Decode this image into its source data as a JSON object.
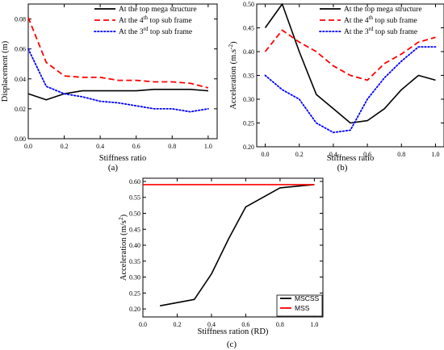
{
  "chart_data": [
    {
      "type": "line",
      "panel_label": "(a)",
      "xlabel": "Stiffness ratio",
      "ylabel": "Displacement (m)",
      "xlim": [
        0.0,
        1.05
      ],
      "ylim": [
        0.0,
        0.09
      ],
      "xticks": [
        "0.0",
        "0.2",
        "0.4",
        "0.6",
        "0.8",
        "1.0"
      ],
      "xtick_values": [
        0.0,
        0.2,
        0.4,
        0.6,
        0.8,
        1.0
      ],
      "yticks": [
        "0.00",
        "0.02",
        "0.04",
        "0.06",
        "0.08"
      ],
      "ytick_values": [
        0.0,
        0.02,
        0.04,
        0.06,
        0.08
      ],
      "grid": false,
      "legend_position": "top-right",
      "x": [
        0.0,
        0.1,
        0.2,
        0.3,
        0.4,
        0.5,
        0.6,
        0.7,
        0.8,
        0.9,
        1.0
      ],
      "series": [
        {
          "name": "At the top mega structure",
          "legend_main": "At the top mega structure",
          "legend_sup": "",
          "legend_post": "",
          "color": "#000000",
          "style": "solid",
          "values": [
            0.03,
            0.026,
            0.03,
            0.032,
            0.032,
            0.032,
            0.032,
            0.033,
            0.033,
            0.033,
            0.032
          ]
        },
        {
          "name": "At the 4th top sub frame",
          "legend_main": "At the 4",
          "legend_sup": "th",
          "legend_post": " top sub frame",
          "color": "#ff0000",
          "style": "dashed",
          "values": [
            0.081,
            0.051,
            0.042,
            0.041,
            0.041,
            0.039,
            0.039,
            0.038,
            0.038,
            0.037,
            0.034
          ]
        },
        {
          "name": "At the 3rd top sub frame",
          "legend_main": "At the 3",
          "legend_sup": "rd",
          "legend_post": " top sub frame",
          "color": "#0000ff",
          "style": "dotted",
          "values": [
            0.06,
            0.035,
            0.03,
            0.028,
            0.025,
            0.024,
            0.022,
            0.02,
            0.02,
            0.018,
            0.02
          ]
        }
      ]
    },
    {
      "type": "line",
      "panel_label": "(b)",
      "xlabel": "Stiffness ratio",
      "ylabel": "Acceleration (m.s",
      "ylabel_sup": "-2",
      "ylabel_post": ")",
      "xlim": [
        -0.05,
        1.05
      ],
      "ylim": [
        0.2,
        0.5
      ],
      "xticks": [
        "0.0",
        "0.2",
        "0.4",
        "0.6",
        "0.8",
        "1.0"
      ],
      "xtick_values": [
        0.0,
        0.2,
        0.4,
        0.6,
        0.8,
        1.0
      ],
      "yticks": [
        "0.20",
        "0.25",
        "0.30",
        "0.35",
        "0.40",
        "0.45",
        "0.50"
      ],
      "ytick_values": [
        0.2,
        0.25,
        0.3,
        0.35,
        0.4,
        0.45,
        0.5
      ],
      "grid": false,
      "legend_position": "top-right",
      "x": [
        0.0,
        0.1,
        0.2,
        0.3,
        0.4,
        0.5,
        0.6,
        0.7,
        0.8,
        0.9,
        1.0
      ],
      "series": [
        {
          "name": "At the top mega structure",
          "legend_main": "At the top mega structure",
          "legend_sup": "",
          "legend_post": "",
          "color": "#000000",
          "style": "solid",
          "values": [
            0.45,
            0.5,
            0.4,
            0.31,
            0.28,
            0.25,
            0.255,
            0.28,
            0.32,
            0.35,
            0.34
          ]
        },
        {
          "name": "At the 4th top sub frame",
          "legend_main": "At the 4",
          "legend_sup": "th",
          "legend_post": " top sub frame",
          "color": "#ff0000",
          "style": "dashed",
          "values": [
            0.4,
            0.445,
            0.42,
            0.4,
            0.37,
            0.35,
            0.34,
            0.375,
            0.395,
            0.42,
            0.43
          ]
        },
        {
          "name": "At the 3rd top sub frame",
          "legend_main": "At the 3",
          "legend_sup": "rd",
          "legend_post": " top sub frame",
          "color": "#0000ff",
          "style": "dotted",
          "values": [
            0.35,
            0.32,
            0.3,
            0.25,
            0.23,
            0.235,
            0.3,
            0.345,
            0.38,
            0.41,
            0.41
          ]
        }
      ]
    },
    {
      "type": "line",
      "panel_label": "(c)",
      "xlabel": "Stiffness ration (RD)",
      "ylabel": "Acceleration (m/s",
      "ylabel_sup": "2",
      "ylabel_post": ")",
      "xlim": [
        0.0,
        1.05
      ],
      "ylim": [
        0.175,
        0.61
      ],
      "xticks": [
        "0.0",
        "0.2",
        "0.4",
        "0.6",
        "0.8",
        "1.0"
      ],
      "xtick_values": [
        0.0,
        0.2,
        0.4,
        0.6,
        0.8,
        1.0
      ],
      "yticks": [
        "0.20",
        "0.25",
        "0.30",
        "0.35",
        "0.40",
        "0.45",
        "0.50",
        "0.55",
        "0.60"
      ],
      "ytick_values": [
        0.2,
        0.25,
        0.3,
        0.35,
        0.4,
        0.45,
        0.5,
        0.55,
        0.6
      ],
      "grid": false,
      "legend_position": "bottom-right",
      "series": [
        {
          "name": "MSCSS",
          "legend_main": "MSCSS",
          "legend_sup": "",
          "legend_post": "",
          "color": "#000000",
          "style": "solid",
          "x": [
            0.1,
            0.3,
            0.4,
            0.5,
            0.6,
            0.8,
            1.0
          ],
          "values": [
            0.21,
            0.23,
            0.31,
            0.42,
            0.52,
            0.58,
            0.59
          ]
        },
        {
          "name": "MSS",
          "legend_main": "MSS",
          "legend_sup": "",
          "legend_post": "",
          "color": "#ff0000",
          "style": "solid",
          "x": [
            0.0,
            1.0
          ],
          "values": [
            0.59,
            0.59
          ]
        }
      ]
    }
  ]
}
